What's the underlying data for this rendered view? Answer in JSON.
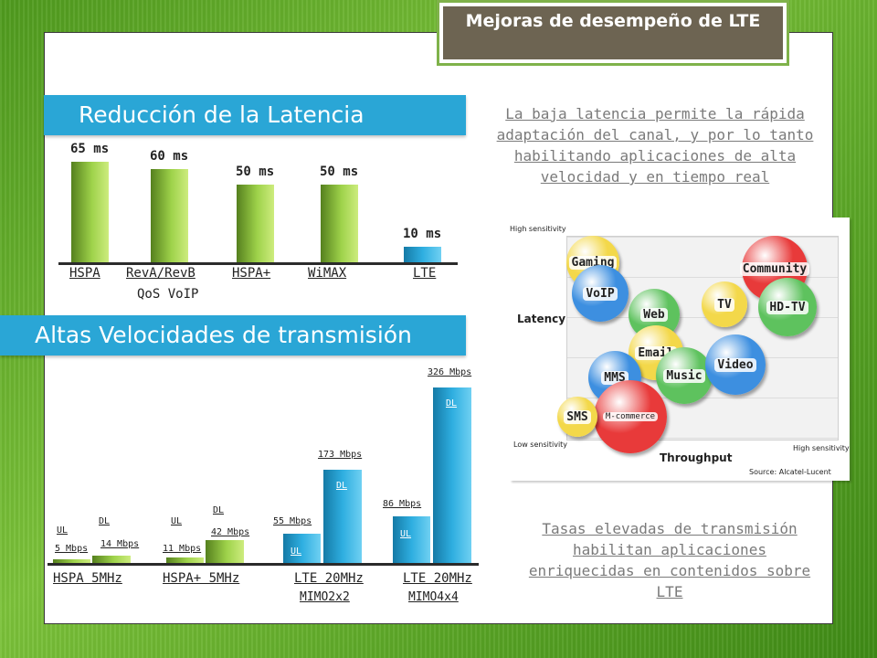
{
  "title": "Mejoras de desempeño de LTE",
  "latency": {
    "banner": "Reducción de la Latencia",
    "note": "La baja latencia permite la rápida adaptación del canal, y por lo tanto habilitando aplicaciones de alta velocidad y en tiempo real",
    "bars": [
      {
        "label": "65 ms",
        "value": 65,
        "category": "HSPA"
      },
      {
        "label": "60 ms",
        "value": 60,
        "category": "RevA/RevB",
        "category2": "QoS VoIP"
      },
      {
        "label": "50 ms",
        "value": 50,
        "category": "HSPA+"
      },
      {
        "label": "50 ms",
        "value": 50,
        "category": "WiMAX"
      },
      {
        "label": "10 ms",
        "value": 10,
        "category": "LTE"
      }
    ]
  },
  "speed": {
    "banner": "Altas Velocidades de transmisión",
    "note": "Tasas elevadas de transmisión habilitan aplicaciones enriquecidas en contenidos sobre LTE",
    "ul_label": "UL",
    "dl_label": "DL",
    "groups": [
      {
        "name": "HSPA 5MHz",
        "name2": "",
        "ul": "5 Mbps",
        "dl": "14 Mbps",
        "ul_value": 5,
        "dl_value": 14
      },
      {
        "name": "HSPA+ 5MHz",
        "name2": "",
        "ul": "11 Mbps",
        "dl": "42 Mbps",
        "ul_value": 11,
        "dl_value": 42
      },
      {
        "name": "LTE 20MHz",
        "name2": "MIMO2x2",
        "ul": "55 Mbps",
        "dl": "173 Mbps",
        "ul_value": 55,
        "dl_value": 173
      },
      {
        "name": "LTE 20MHz",
        "name2": "MIMO4x4",
        "ul": "86 Mbps",
        "dl": "326 Mbps",
        "ul_value": 86,
        "dl_value": 326
      }
    ]
  },
  "diagram": {
    "y_axis": "Latency",
    "x_axis": "Throughput",
    "y_high": "High sensitivity",
    "y_low": "Low sensitivity",
    "x_high": "High sensitivity",
    "source": "Source: Alcatel-Lucent",
    "bubbles": [
      {
        "label": "Gaming",
        "color": "#f3d84a"
      },
      {
        "label": "VoIP",
        "color": "#3d8fe0"
      },
      {
        "label": "Community",
        "color": "#e83a3a"
      },
      {
        "label": "TV",
        "color": "#f3d84a"
      },
      {
        "label": "HD-TV",
        "color": "#5ec25e"
      },
      {
        "label": "Web",
        "color": "#5ec25e"
      },
      {
        "label": "Email",
        "color": "#f3d84a"
      },
      {
        "label": "Music",
        "color": "#5ec25e"
      },
      {
        "label": "Video",
        "color": "#3d8fe0"
      },
      {
        "label": "MMS",
        "color": "#3d8fe0"
      },
      {
        "label": "M-commerce",
        "color": "#e83a3a"
      },
      {
        "label": "SMS",
        "color": "#f3d84a"
      }
    ]
  },
  "colors": {
    "banner": "#2aa6d6",
    "title_bg": "#6d6452",
    "green_bar": "#8cc63f",
    "blue_bar": "#2aa6d6"
  }
}
